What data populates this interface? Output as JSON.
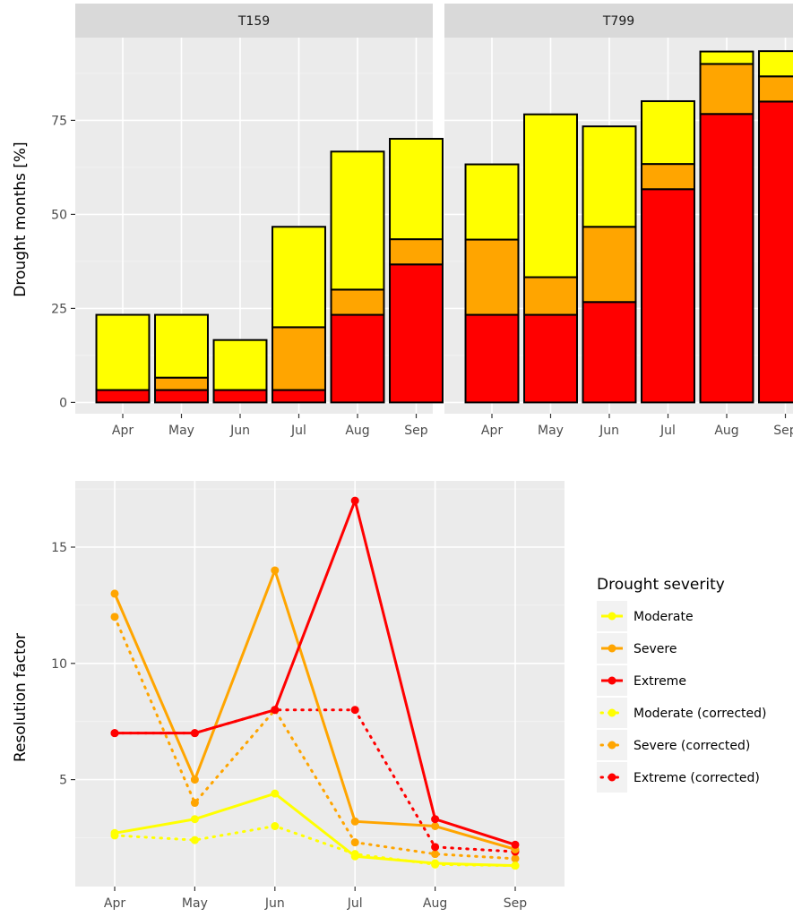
{
  "chart_data": [
    {
      "type": "bar",
      "stacked": true,
      "facets": [
        "T159",
        "T799"
      ],
      "categories": [
        "Apr",
        "May",
        "Jun",
        "Jul",
        "Aug",
        "Sep"
      ],
      "ylabel": "Drought months [%]",
      "xlabel": "",
      "ylim": [
        0,
        100
      ],
      "yticks": [
        0,
        25,
        50,
        75
      ],
      "stack_order": [
        "Extreme",
        "Severe",
        "Moderate"
      ],
      "colors": {
        "Extreme": "#ff0000",
        "Severe": "#ffa500",
        "Moderate": "#ffff00"
      },
      "panels": [
        {
          "facet": "T159",
          "series": [
            {
              "name": "Extreme",
              "values": [
                3.3,
                3.3,
                3.3,
                3.3,
                23.3,
                36.7
              ]
            },
            {
              "name": "Severe",
              "values": [
                0,
                3.3,
                0,
                16.7,
                6.7,
                6.7
              ]
            },
            {
              "name": "Moderate",
              "values": [
                20.0,
                16.7,
                13.3,
                26.7,
                36.7,
                26.7
              ]
            }
          ]
        },
        {
          "facet": "T799",
          "series": [
            {
              "name": "Extreme",
              "values": [
                23.3,
                23.3,
                26.7,
                56.7,
                76.7,
                80.0
              ]
            },
            {
              "name": "Severe",
              "values": [
                20.0,
                10.0,
                20.0,
                6.7,
                13.3,
                6.7
              ]
            },
            {
              "name": "Moderate",
              "values": [
                20.0,
                43.3,
                26.7,
                16.7,
                3.3,
                6.7
              ]
            }
          ]
        }
      ]
    },
    {
      "type": "line",
      "categories": [
        "Apr",
        "May",
        "Jun",
        "Jul",
        "Aug",
        "Sep"
      ],
      "ylabel": "Resolution factor",
      "xlabel": "",
      "ylim": [
        0.7,
        17.5
      ],
      "yticks": [
        5,
        10,
        15
      ],
      "legend_title": "Drought severity",
      "legend_position": "right",
      "series": [
        {
          "name": "Moderate",
          "color": "#ffff00",
          "dash": "solid",
          "values": [
            2.7,
            3.3,
            4.4,
            1.7,
            1.4,
            1.3
          ]
        },
        {
          "name": "Severe",
          "color": "#ffa500",
          "dash": "solid",
          "values": [
            13,
            5,
            14,
            3.2,
            3.0,
            2.0
          ]
        },
        {
          "name": "Extreme",
          "color": "#ff0000",
          "dash": "solid",
          "values": [
            7,
            7,
            8,
            17,
            3.3,
            2.2
          ]
        },
        {
          "name": "Moderate (corrected)",
          "color": "#ffff00",
          "dash": "dotted",
          "values": [
            2.6,
            2.4,
            3.0,
            1.8,
            1.35,
            1.3
          ]
        },
        {
          "name": "Severe (corrected)",
          "color": "#ffa500",
          "dash": "dotted",
          "values": [
            12,
            4,
            8,
            2.3,
            1.8,
            1.6
          ]
        },
        {
          "name": "Extreme (corrected)",
          "color": "#ff0000",
          "dash": "dotted",
          "values": [
            7,
            7,
            8,
            8,
            2.1,
            1.9
          ]
        }
      ]
    }
  ]
}
